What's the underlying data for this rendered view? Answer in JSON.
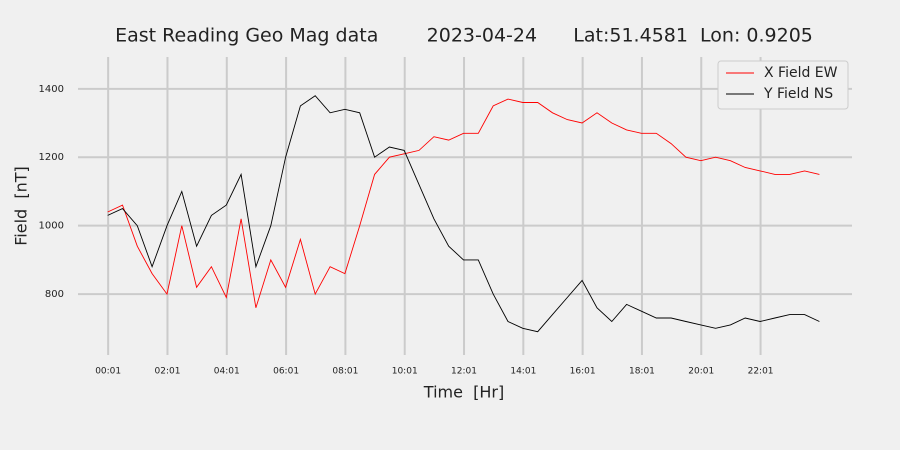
{
  "chart_data": {
    "type": "line",
    "title": "East Reading Geo Mag data        2023-04-24      Lat:51.4581  Lon: 0.9205",
    "x_label": "Time  [Hr]",
    "y_label": "Field  [nT]",
    "x": [
      0,
      0.5,
      1,
      1.5,
      2,
      2.5,
      3,
      3.5,
      4,
      4.5,
      5,
      5.5,
      6,
      6.5,
      7,
      7.5,
      8,
      8.5,
      9,
      9.5,
      10,
      10.5,
      11,
      11.5,
      12,
      12.5,
      13,
      13.5,
      14,
      14.5,
      15,
      15.5,
      16,
      16.5,
      17,
      17.5,
      18,
      18.5,
      19,
      19.5,
      20,
      20.5,
      21,
      21.5,
      22,
      22.5,
      23,
      23.5,
      24
    ],
    "series": [
      {
        "name": "X Field EW",
        "color": "#ff0000",
        "values": [
          1040,
          1060,
          940,
          860,
          800,
          1000,
          820,
          880,
          790,
          1020,
          760,
          900,
          820,
          960,
          800,
          880,
          860,
          1000,
          1150,
          1200,
          1210,
          1220,
          1260,
          1250,
          1270,
          1270,
          1350,
          1370,
          1360,
          1360,
          1330,
          1310,
          1300,
          1330,
          1300,
          1280,
          1270,
          1270,
          1240,
          1200,
          1190,
          1200,
          1190,
          1170,
          1160,
          1150,
          1150,
          1160,
          1150
        ]
      },
      {
        "name": "Y Field NS",
        "color": "#000000",
        "values": [
          1030,
          1050,
          1000,
          880,
          1000,
          1100,
          940,
          1030,
          1060,
          1150,
          880,
          1000,
          1200,
          1350,
          1380,
          1330,
          1340,
          1330,
          1200,
          1230,
          1220,
          1120,
          1020,
          940,
          900,
          900,
          800,
          720,
          700,
          690,
          740,
          790,
          840,
          760,
          720,
          770,
          750,
          730,
          730,
          720,
          710,
          700,
          710,
          730,
          720,
          730,
          740,
          740,
          720
        ]
      }
    ],
    "xlim": [
      -1.0,
      25.1
    ],
    "ylim": [
      622,
      1493
    ],
    "xticks": [
      {
        "value": 0.017,
        "label": "00:01"
      },
      {
        "value": 2.017,
        "label": "02:01"
      },
      {
        "value": 4.017,
        "label": "04:01"
      },
      {
        "value": 6.017,
        "label": "06:01"
      },
      {
        "value": 8.017,
        "label": "08:01"
      },
      {
        "value": 10.017,
        "label": "10:01"
      },
      {
        "value": 12.017,
        "label": "12:01"
      },
      {
        "value": 14.017,
        "label": "14:01"
      },
      {
        "value": 16.017,
        "label": "16:01"
      },
      {
        "value": 18.017,
        "label": "18:01"
      },
      {
        "value": 20.017,
        "label": "20:01"
      },
      {
        "value": 22.017,
        "label": "22:01"
      }
    ],
    "yticks": [
      800,
      1000,
      1200,
      1400
    ],
    "grid": true,
    "legend": "upper right"
  }
}
